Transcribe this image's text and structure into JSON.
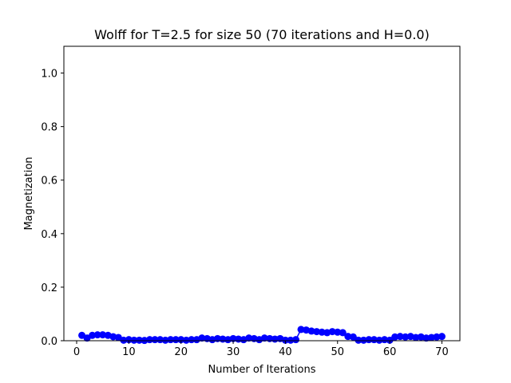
{
  "chart_data": {
    "type": "line",
    "title": "Wolff for T=2.5 for size 50 (70 iterations and H=0.0)",
    "xlabel": "Number of Iterations",
    "ylabel": "Magnetization",
    "xlim": [
      -2.45,
      73.45
    ],
    "ylim": [
      0,
      1.1
    ],
    "xticks": [
      0,
      10,
      20,
      30,
      40,
      50,
      60,
      70
    ],
    "yticks": [
      0.0,
      0.2,
      0.4,
      0.6,
      0.8,
      1.0
    ],
    "xtick_labels": [
      "0",
      "10",
      "20",
      "30",
      "40",
      "50",
      "60",
      "70"
    ],
    "ytick_labels": [
      "0.0",
      "0.2",
      "0.4",
      "0.6",
      "0.8",
      "1.0"
    ],
    "grid": false,
    "series": [
      {
        "color": "#0000ff",
        "marker": "circle",
        "x": [
          1,
          2,
          3,
          4,
          5,
          6,
          7,
          8,
          9,
          10,
          11,
          12,
          13,
          14,
          15,
          16,
          17,
          18,
          19,
          20,
          21,
          22,
          23,
          24,
          25,
          26,
          27,
          28,
          29,
          30,
          31,
          32,
          33,
          34,
          35,
          36,
          37,
          38,
          39,
          40,
          41,
          42,
          43,
          44,
          45,
          46,
          47,
          48,
          49,
          50,
          51,
          52,
          53,
          54,
          55,
          56,
          57,
          58,
          59,
          60,
          61,
          62,
          63,
          64,
          65,
          66,
          67,
          68,
          69,
          70
        ],
        "values": [
          0.02,
          0.01,
          0.02,
          0.022,
          0.022,
          0.02,
          0.015,
          0.012,
          0.002,
          0.004,
          0.002,
          0.002,
          0.001,
          0.004,
          0.004,
          0.004,
          0.002,
          0.004,
          0.004,
          0.004,
          0.002,
          0.004,
          0.004,
          0.01,
          0.008,
          0.004,
          0.008,
          0.006,
          0.004,
          0.008,
          0.006,
          0.004,
          0.01,
          0.008,
          0.004,
          0.01,
          0.008,
          0.006,
          0.008,
          0.002,
          0.002,
          0.004,
          0.042,
          0.04,
          0.036,
          0.034,
          0.032,
          0.03,
          0.034,
          0.032,
          0.03,
          0.016,
          0.014,
          0.002,
          0.002,
          0.004,
          0.004,
          0.002,
          0.004,
          0.002,
          0.014,
          0.016,
          0.014,
          0.016,
          0.012,
          0.014,
          0.01,
          0.012,
          0.014,
          0.016
        ]
      }
    ]
  }
}
